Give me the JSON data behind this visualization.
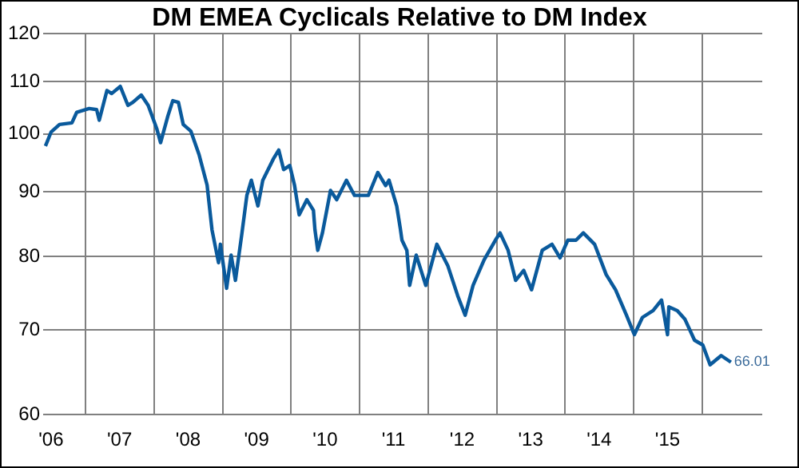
{
  "chart_data": {
    "type": "line",
    "title": "DM EMEA Cyclicals Relative to DM Index",
    "x": [
      "2006-06-01",
      "2006-07-01",
      "2006-08-15",
      "2006-10-20",
      "2006-11-15",
      "2007-01-20",
      "2007-03-01",
      "2007-03-15",
      "2007-04-25",
      "2007-05-20",
      "2007-07-05",
      "2007-08-15",
      "2007-09-10",
      "2007-10-25",
      "2007-12-01",
      "2008-01-15",
      "2008-02-05",
      "2008-03-15",
      "2008-04-10",
      "2008-05-10",
      "2008-06-05",
      "2008-07-15",
      "2008-08-28",
      "2008-10-10",
      "2008-11-05",
      "2008-12-10",
      "2008-12-20",
      "2009-01-22",
      "2009-02-15",
      "2009-03-10",
      "2009-04-12",
      "2009-05-10",
      "2009-06-03",
      "2009-07-08",
      "2009-08-03",
      "2009-10-01",
      "2009-10-27",
      "2009-11-22",
      "2009-12-25",
      "2010-01-19",
      "2010-02-13",
      "2010-03-26",
      "2010-04-30",
      "2010-05-08",
      "2010-05-23",
      "2010-06-17",
      "2010-07-30",
      "2010-09-01",
      "2010-10-23",
      "2010-12-05",
      "2011-02-17",
      "2011-04-08",
      "2011-05-20",
      "2011-06-07",
      "2011-07-18",
      "2011-08-06",
      "2011-08-15",
      "2011-09-10",
      "2011-09-25",
      "2011-10-30",
      "2011-12-20",
      "2012-02-17",
      "2012-04-15",
      "2012-06-07",
      "2012-07-17",
      "2012-08-28",
      "2012-10-26",
      "2012-12-25",
      "2013-01-19",
      "2013-03-03",
      "2013-04-12",
      "2013-05-25",
      "2013-07-06",
      "2013-09-01",
      "2013-10-23",
      "2013-12-05",
      "2014-01-15",
      "2014-02-28",
      "2014-04-08",
      "2014-06-07",
      "2014-08-08",
      "2014-09-27",
      "2014-11-24",
      "2015-01-05",
      "2015-02-17",
      "2015-04-15",
      "2015-05-30",
      "2015-07-01",
      "2015-07-08",
      "2015-08-22",
      "2015-10-01",
      "2015-11-22",
      "2016-01-05",
      "2016-02-13",
      "2016-04-12",
      "2016-06-03"
    ],
    "series": [
      {
        "color": "#0a5a9c",
        "values": [
          97.8,
          100.3,
          101.7,
          102,
          104,
          104.7,
          104.5,
          102.5,
          108.2,
          107.6,
          109,
          105.3,
          105.9,
          107.3,
          105.3,
          101,
          98.4,
          103.3,
          106.2,
          105.9,
          101.7,
          100.5,
          96.3,
          91.1,
          84,
          79.1,
          81.8,
          75.5,
          80.2,
          76.6,
          83.1,
          89.4,
          91.9,
          87.7,
          91.9,
          95.7,
          97.1,
          93.7,
          94.4,
          91.1,
          86.3,
          88.7,
          87,
          84,
          80.9,
          83.5,
          90.2,
          88.7,
          91.9,
          89.4,
          89.4,
          93.2,
          91,
          91.9,
          87.7,
          84.2,
          82.4,
          80.9,
          75.9,
          80.2,
          75.9,
          81.8,
          78.7,
          74.5,
          71.9,
          75.9,
          79.5,
          82.4,
          83.5,
          80.9,
          76.6,
          78,
          75.3,
          80.9,
          81.8,
          79.8,
          82.4,
          82.4,
          83.5,
          81.8,
          77.4,
          75.3,
          71.9,
          69.4,
          71.6,
          72.5,
          73.9,
          69.4,
          73,
          72.5,
          71.4,
          68.7,
          68.1,
          65.7,
          66.8,
          66.01
        ],
        "value_labels": [
          null,
          null,
          null,
          null,
          null,
          null,
          null,
          null,
          null,
          null,
          null,
          null,
          null,
          null,
          null,
          null,
          null,
          null,
          null,
          null,
          null,
          null,
          null,
          null,
          null,
          null,
          null,
          null,
          null,
          null,
          null,
          null,
          null,
          null,
          null,
          null,
          null,
          null,
          null,
          null,
          null,
          null,
          null,
          null,
          null,
          null,
          null,
          null,
          null,
          null,
          null,
          null,
          null,
          null,
          null,
          null,
          null,
          null,
          null,
          null,
          null,
          null,
          null,
          null,
          null,
          null,
          null,
          null,
          null,
          null,
          null,
          null,
          null,
          null,
          null,
          null,
          null,
          null,
          null,
          null,
          null,
          null,
          null,
          null,
          null,
          null,
          null,
          null,
          null,
          null,
          null,
          null,
          null,
          null,
          null,
          "66.01"
        ]
      }
    ],
    "xlim": [
      "2006-05-20",
      "2016-11-17"
    ],
    "xticks": [
      {
        "value": "2006-07-01",
        "label": "'06"
      },
      {
        "value": "2007-01-01",
        "label": null
      },
      {
        "value": "2007-07-01",
        "label": "'07"
      },
      {
        "value": "2008-01-01",
        "label": null
      },
      {
        "value": "2008-07-01",
        "label": "'08"
      },
      {
        "value": "2009-01-01",
        "label": null
      },
      {
        "value": "2009-07-01",
        "label": "'09"
      },
      {
        "value": "2010-01-01",
        "label": null
      },
      {
        "value": "2010-07-01",
        "label": "'10"
      },
      {
        "value": "2011-01-01",
        "label": null
      },
      {
        "value": "2011-07-01",
        "label": "'11"
      },
      {
        "value": "2012-01-01",
        "label": null
      },
      {
        "value": "2012-07-01",
        "label": "'12"
      },
      {
        "value": "2013-01-01",
        "label": null
      },
      {
        "value": "2013-07-01",
        "label": "'13"
      },
      {
        "value": "2014-01-01",
        "label": null
      },
      {
        "value": "2014-07-01",
        "label": "'14"
      },
      {
        "value": "2015-01-01",
        "label": null
      },
      {
        "value": "2015-07-01",
        "label": "'15"
      },
      {
        "value": "2016-01-01",
        "label": null
      }
    ],
    "ylim": [
      60,
      120
    ],
    "yticks": [
      60,
      70,
      80,
      90,
      100,
      110,
      120
    ],
    "log": "y",
    "grid": true,
    "legend": false,
    "marker": "none",
    "line_style": "solid"
  }
}
